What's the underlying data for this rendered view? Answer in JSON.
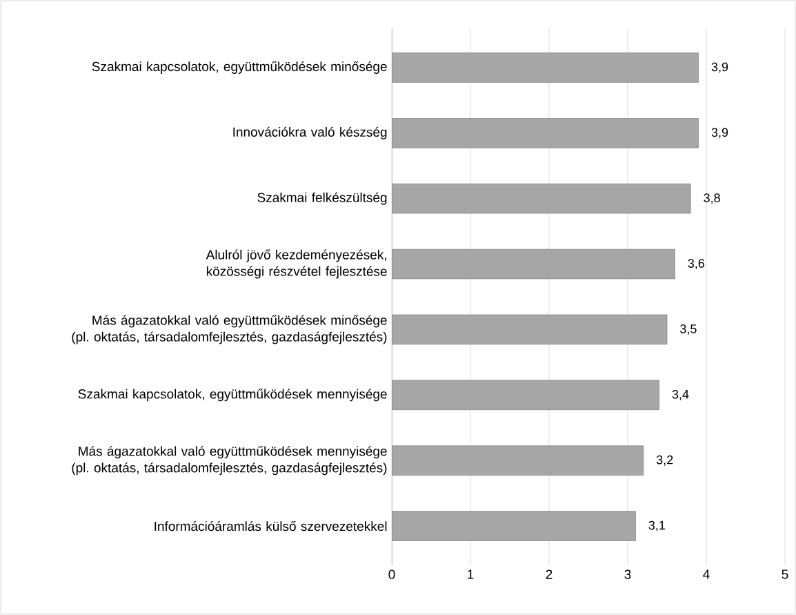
{
  "chart_data": {
    "type": "bar",
    "orientation": "horizontal",
    "categories": [
      "Szakmai kapcsolatok, együttműködések minősége",
      "Innovációkra való készség",
      "Szakmai felkészültség",
      "Alulról jövő kezdeményezések, közösségi részvétel fejlesztése",
      "Más ágazatokkal való együttműködések minősége (pl. oktatás, társadalomfejlesztés, gazdaságfejlesztés)",
      "Szakmai kapcsolatok, együttműködések mennyisége",
      "Más ágazatokkal való együttműködések mennyisége (pl. oktatás, társadalomfejlesztés, gazdaságfejlesztés)",
      "Információáramlás külső szervezetekkel"
    ],
    "values": [
      3.9,
      3.9,
      3.8,
      3.6,
      3.5,
      3.4,
      3.2,
      3.1
    ],
    "value_labels": [
      "3,9",
      "3,9",
      "3,8",
      "3,6",
      "3,5",
      "3,4",
      "3,2",
      "3,1"
    ],
    "color": "#a6a6a6",
    "xlim": [
      0,
      5
    ],
    "xticks": [
      0,
      1,
      2,
      3,
      4,
      5
    ],
    "grid": "x"
  }
}
